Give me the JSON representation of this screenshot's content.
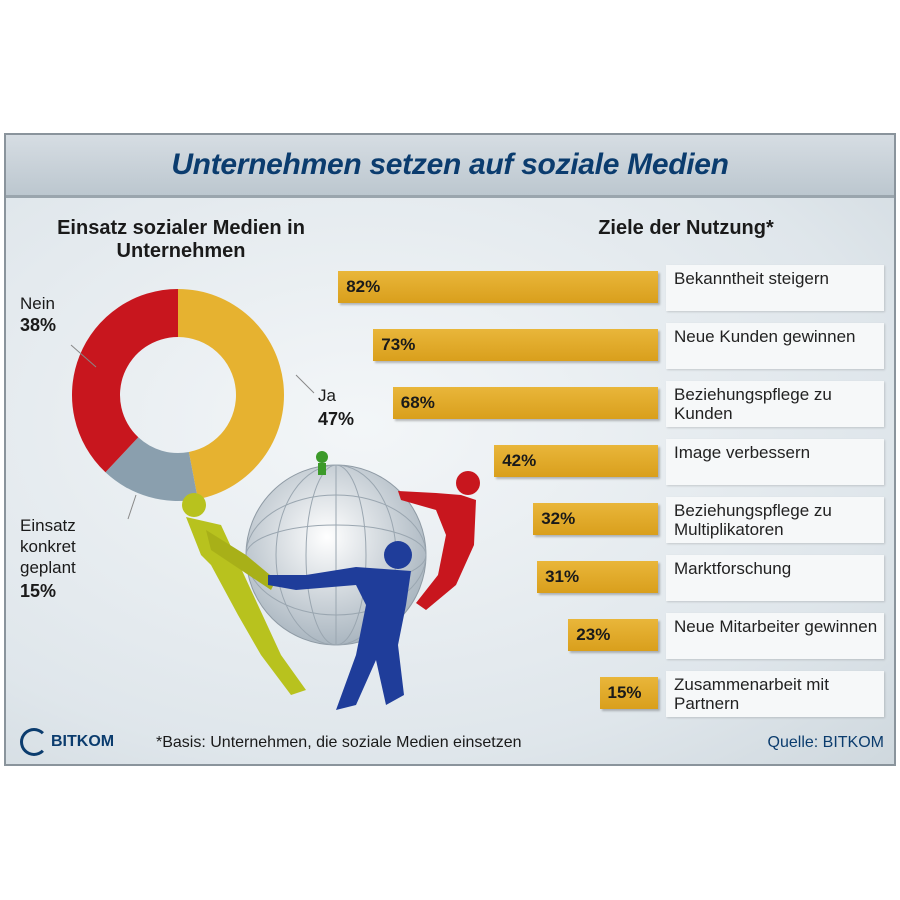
{
  "title": "Unternehmen setzen auf soziale Medien",
  "chart_data": [
    {
      "type": "pie",
      "title": "Einsatz sozialer Medien in Unternehmen",
      "slices": [
        {
          "label": "Ja",
          "value": 47,
          "value_label": "47%",
          "color": "#e6b230"
        },
        {
          "label": "Einsatz konkret geplant",
          "value": 15,
          "value_label": "15%",
          "color": "#8a9fae"
        },
        {
          "label": "Nein",
          "value": 38,
          "value_label": "38%",
          "color": "#c8161e"
        }
      ]
    },
    {
      "type": "bar",
      "orientation": "horizontal",
      "title": "Ziele der Nutzung*",
      "xlim": [
        0,
        100
      ],
      "categories": [
        "Bekanntheit steigern",
        "Neue Kunden gewinnen",
        "Beziehungspflege zu Kunden",
        "Image verbessern",
        "Beziehungspflege zu Multiplikatoren",
        "Marktforschung",
        "Neue Mitarbeiter gewinnen",
        "Zusammenarbeit mit Partnern"
      ],
      "values": [
        82,
        73,
        68,
        42,
        32,
        31,
        23,
        15
      ],
      "value_labels": [
        "82%",
        "73%",
        "68%",
        "42%",
        "32%",
        "31%",
        "23%",
        "15%"
      ],
      "color": "#e2aa2a"
    }
  ],
  "footer": {
    "logo": "BITKOM",
    "footnote": "*Basis: Unternehmen, die soziale Medien einsetzen",
    "source": "Quelle: BITKOM"
  }
}
